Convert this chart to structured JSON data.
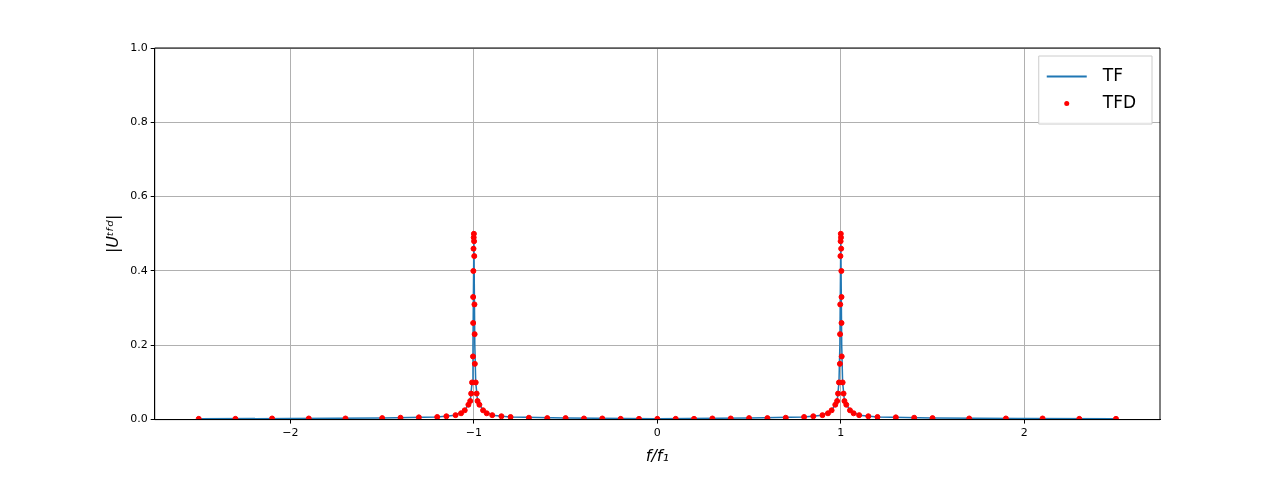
{
  "chart_data": {
    "type": "line",
    "xlabel": "f/f₁",
    "ylabel": "|Uᵗᶠᵈ|",
    "xlim": [
      -2.74,
      2.74
    ],
    "xticks": [
      {
        "value": -2,
        "label": "−2"
      },
      {
        "value": -1,
        "label": "−1"
      },
      0,
      1,
      2
    ],
    "ylim": [
      0,
      1
    ],
    "yticks": [
      {
        "value": 0,
        "label": "0.0"
      },
      {
        "value": 0.2,
        "label": "0.2"
      },
      {
        "value": 0.4,
        "label": "0.4"
      },
      {
        "value": 0.6,
        "label": "0.6"
      },
      {
        "value": 0.8,
        "label": "0.8"
      },
      {
        "value": 1,
        "label": "1.0"
      }
    ],
    "grid": true,
    "legend": "top right",
    "series": [
      {
        "name": "TF",
        "color": "#1f77b4",
        "marker": "none",
        "line_style": "solid",
        "x": [
          -2.5,
          -2.0,
          -1.5,
          -1.2,
          -1.1,
          -1.05,
          -1.02,
          -1.01,
          -1.005,
          -1.0,
          -0.995,
          -0.99,
          -0.98,
          -0.95,
          -0.9,
          -0.8,
          -0.5,
          0,
          0.5,
          0.8,
          0.9,
          0.95,
          0.98,
          0.99,
          0.995,
          1.0,
          1.005,
          1.01,
          1.02,
          1.05,
          1.1,
          1.2,
          1.5,
          2.0,
          2.5
        ],
        "values": [
          0.002,
          0.003,
          0.004,
          0.007,
          0.012,
          0.025,
          0.05,
          0.1,
          0.2,
          0.49,
          0.2,
          0.1,
          0.05,
          0.025,
          0.012,
          0.007,
          0.004,
          0.002,
          0.004,
          0.007,
          0.012,
          0.025,
          0.05,
          0.1,
          0.2,
          0.49,
          0.2,
          0.1,
          0.05,
          0.025,
          0.012,
          0.007,
          0.004,
          0.003,
          0.002
        ]
      },
      {
        "name": "TFD",
        "type": "scatter",
        "color": "#ff0000",
        "marker": "circle",
        "x": [
          -2.5,
          -2.3,
          -2.1,
          -1.9,
          -1.7,
          -1.5,
          -1.4,
          -1.3,
          -1.2,
          -1.15,
          -1.1,
          -1.07,
          -1.05,
          -1.03,
          -1.02,
          -1.015,
          -1.01,
          -1.005,
          -1.004,
          -1.004,
          -1.003,
          -1.002,
          -1.001,
          -1.0,
          -0.999,
          -0.998,
          -0.997,
          -0.996,
          -0.995,
          -0.99,
          -0.985,
          -0.98,
          -0.97,
          -0.95,
          -0.93,
          -0.9,
          -0.85,
          -0.8,
          -0.7,
          -0.6,
          -0.5,
          -0.4,
          -0.3,
          -0.2,
          -0.1,
          0,
          0.1,
          0.2,
          0.3,
          0.4,
          0.5,
          0.6,
          0.7,
          0.8,
          0.85,
          0.9,
          0.93,
          0.95,
          0.97,
          0.98,
          0.985,
          0.99,
          0.995,
          0.996,
          0.997,
          0.998,
          0.999,
          1.0,
          1.001,
          1.002,
          1.003,
          1.004,
          1.004,
          1.005,
          1.01,
          1.015,
          1.02,
          1.03,
          1.05,
          1.07,
          1.1,
          1.15,
          1.2,
          1.3,
          1.4,
          1.5,
          1.7,
          1.9,
          2.1,
          2.3,
          2.5
        ],
        "values": [
          0.002,
          0.002,
          0.003,
          0.003,
          0.003,
          0.004,
          0.005,
          0.006,
          0.007,
          0.009,
          0.012,
          0.017,
          0.025,
          0.04,
          0.05,
          0.07,
          0.1,
          0.17,
          0.26,
          0.33,
          0.4,
          0.46,
          0.49,
          0.5,
          0.48,
          0.44,
          0.31,
          0.23,
          0.15,
          0.1,
          0.07,
          0.05,
          0.04,
          0.025,
          0.017,
          0.012,
          0.009,
          0.007,
          0.005,
          0.004,
          0.004,
          0.003,
          0.003,
          0.002,
          0.002,
          0.002,
          0.002,
          0.002,
          0.003,
          0.003,
          0.004,
          0.004,
          0.005,
          0.007,
          0.009,
          0.012,
          0.017,
          0.025,
          0.04,
          0.05,
          0.07,
          0.1,
          0.15,
          0.23,
          0.31,
          0.44,
          0.48,
          0.5,
          0.49,
          0.46,
          0.4,
          0.33,
          0.26,
          0.17,
          0.1,
          0.07,
          0.05,
          0.04,
          0.025,
          0.017,
          0.012,
          0.009,
          0.007,
          0.006,
          0.005,
          0.004,
          0.003,
          0.003,
          0.003,
          0.002,
          0.002
        ]
      }
    ]
  }
}
